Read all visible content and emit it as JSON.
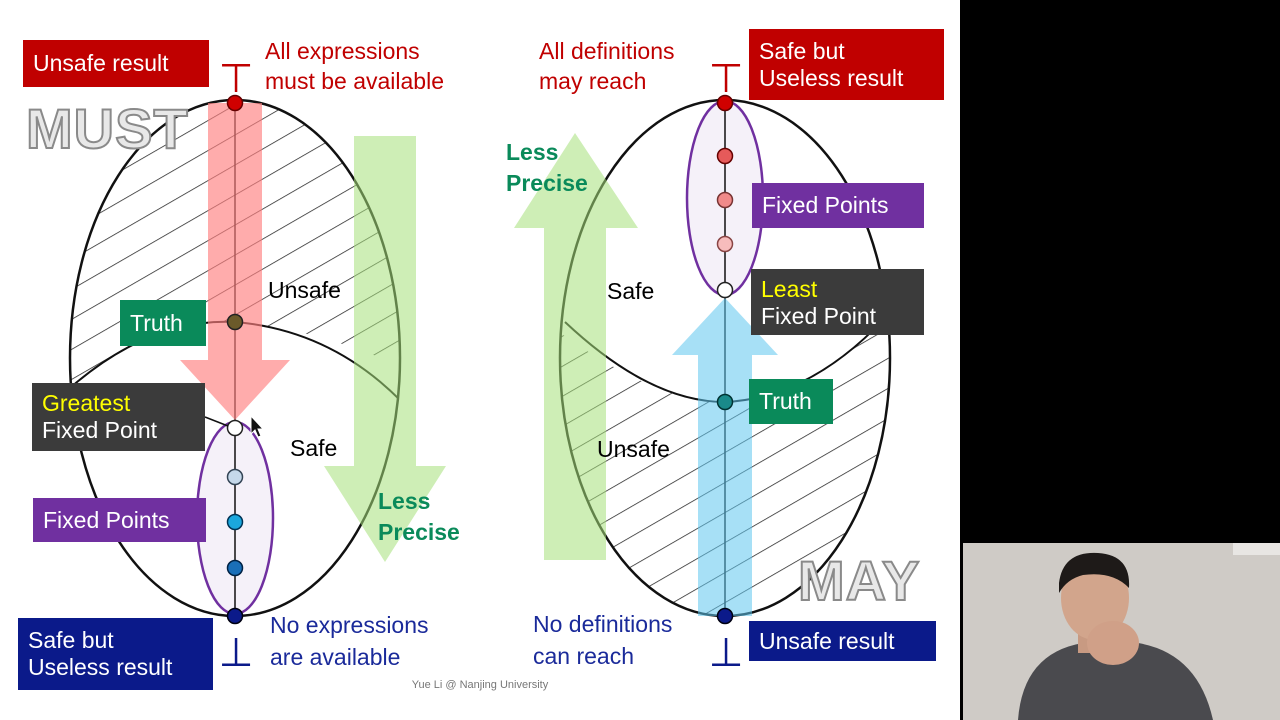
{
  "footer": "Yue Li @ Nanjing University",
  "must": {
    "watermark": "MUST",
    "top_symbol": "⊤",
    "bottom_symbol": "⊥",
    "top_box": "Unsafe result",
    "top_note": [
      "All expressions",
      "must be available"
    ],
    "bottom_box": [
      "Safe but",
      "Useless result"
    ],
    "bottom_note": [
      "No expressions",
      "are available"
    ],
    "truth_box": "Truth",
    "gfp_box": [
      "Greatest",
      "Fixed Point"
    ],
    "fixed_points_box": "Fixed Points",
    "region_unsafe": "Unsafe",
    "region_safe": "Safe",
    "arrow_label": [
      "Less",
      "Precise"
    ]
  },
  "may": {
    "watermark": "MAY",
    "top_symbol": "⊤",
    "bottom_symbol": "⊥",
    "top_box": [
      "Safe but",
      "Useless result"
    ],
    "top_note": [
      "All definitions",
      "may reach"
    ],
    "bottom_box": "Unsafe result",
    "bottom_note": [
      "No definitions",
      "can reach"
    ],
    "truth_box": "Truth",
    "lfp_box": [
      "Least",
      "Fixed Point"
    ],
    "fixed_points_box": "Fixed Points",
    "region_unsafe": "Unsafe",
    "region_safe": "Safe",
    "arrow_label": [
      "Less",
      "Precise"
    ]
  },
  "colors": {
    "red": "#c00000",
    "navy": "#0b1a8a",
    "green": "#0a8a5a",
    "purple": "#7030a0",
    "dark": "#3b3b3b",
    "highlight": "#ffff00"
  }
}
